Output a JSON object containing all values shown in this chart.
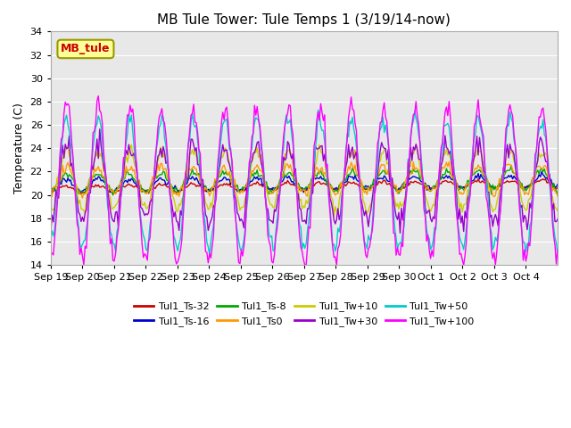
{
  "title": "MB Tule Tower: Tule Temps 1 (3/19/14-now)",
  "ylabel": "Temperature (C)",
  "ylim": [
    14,
    34
  ],
  "yticks": [
    14,
    16,
    18,
    20,
    22,
    24,
    26,
    28,
    30,
    32,
    34
  ],
  "xlabel_dates": [
    "Sep 19",
    "Sep 20",
    "Sep 21",
    "Sep 22",
    "Sep 23",
    "Sep 24",
    "Sep 25",
    "Sep 26",
    "Sep 27",
    "Sep 28",
    "Sep 29",
    "Sep 30",
    "Oct 1",
    "Oct 2",
    "Oct 3",
    "Oct 4"
  ],
  "legend_label": "MB_tule",
  "series": [
    {
      "label": "Tul1_Ts-32",
      "color": "#cc0000"
    },
    {
      "label": "Tul1_Ts-16",
      "color": "#0000cc"
    },
    {
      "label": "Tul1_Ts-8",
      "color": "#00aa00"
    },
    {
      "label": "Tul1_Ts0",
      "color": "#ff9900"
    },
    {
      "label": "Tul1_Tw+10",
      "color": "#cccc00"
    },
    {
      "label": "Tul1_Tw+30",
      "color": "#9900cc"
    },
    {
      "label": "Tul1_Tw+50",
      "color": "#00cccc"
    },
    {
      "label": "Tul1_Tw+100",
      "color": "#ff00ff"
    }
  ],
  "background_color": "#ffffff",
  "plot_bg_color": "#e8e8e8",
  "n_days": 16
}
